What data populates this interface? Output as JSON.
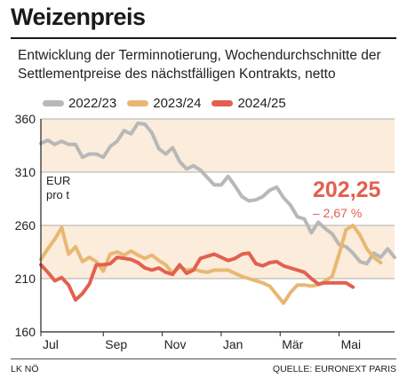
{
  "header": {
    "title": "Weizenpreis",
    "subtitle": "Entwicklung der Terminnotierung, Wochendurchschnitte der Settlementpreise des nächstfälligen Kontrakts, netto"
  },
  "footer": {
    "left": "LK NÖ",
    "right": "QUELLE: EURONEXT PARIS"
  },
  "highlight": {
    "value": "202,25",
    "change": "– 2,67 %"
  },
  "colors": {
    "band": "#fbecdc",
    "grid": "#999999",
    "axis": "#222222"
  },
  "chart_data": {
    "type": "line",
    "ylabel": "EUR\npro t",
    "ylabel_lines": [
      "EUR",
      "pro t"
    ],
    "ylim": [
      160,
      360
    ],
    "yticks": [
      160,
      210,
      260,
      310,
      360
    ],
    "ytick_labels": [
      "160",
      "210",
      "260",
      "310",
      "360"
    ],
    "bands": [
      [
        210,
        260
      ],
      [
        310,
        360
      ]
    ],
    "xlim": [
      0,
      51
    ],
    "xticks": [
      {
        "x": 0,
        "label": "Jul"
      },
      {
        "x": 9,
        "label": "Sep"
      },
      {
        "x": 17.5,
        "label": "Nov"
      },
      {
        "x": 26,
        "label": "Jan"
      },
      {
        "x": 34.5,
        "label": "Mär"
      },
      {
        "x": 43,
        "label": "Mai"
      }
    ],
    "legend_position": "top",
    "series": [
      {
        "name": "2022/23",
        "color": "#b8b8b8",
        "values": [
          337,
          340,
          336,
          339,
          336,
          336,
          324,
          327,
          327,
          324,
          334,
          339,
          349,
          346,
          356,
          355,
          347,
          332,
          327,
          333,
          320,
          313,
          316,
          312,
          305,
          298,
          298,
          306,
          297,
          287,
          283,
          284,
          287,
          293,
          296,
          286,
          279,
          268,
          266,
          253,
          263,
          257,
          252,
          242,
          240,
          234,
          226,
          224,
          234,
          230,
          238,
          230
        ]
      },
      {
        "name": "2023/24",
        "color": "#e8b872",
        "values": [
          228,
          238,
          247,
          258,
          233,
          240,
          226,
          230,
          226,
          217,
          233,
          235,
          232,
          236,
          232,
          229,
          232,
          227,
          223,
          215,
          221,
          218,
          219,
          217,
          216,
          218,
          218,
          218,
          215,
          212,
          210,
          208,
          206,
          203,
          195,
          187,
          197,
          204,
          204,
          203,
          204,
          208,
          212,
          233,
          256,
          260,
          251,
          238,
          230,
          225
        ]
      },
      {
        "name": "2024/25",
        "color": "#e2604f",
        "values": [
          223,
          216,
          208,
          211,
          204,
          190,
          196,
          205,
          223,
          223,
          224,
          230,
          229,
          228,
          225,
          220,
          218,
          220,
          216,
          214,
          223,
          215,
          218,
          229,
          231,
          233,
          230,
          227,
          229,
          233,
          234,
          224,
          222,
          225,
          226,
          222,
          220,
          218,
          216,
          210,
          205,
          206,
          206,
          206,
          206,
          202
        ]
      }
    ]
  }
}
